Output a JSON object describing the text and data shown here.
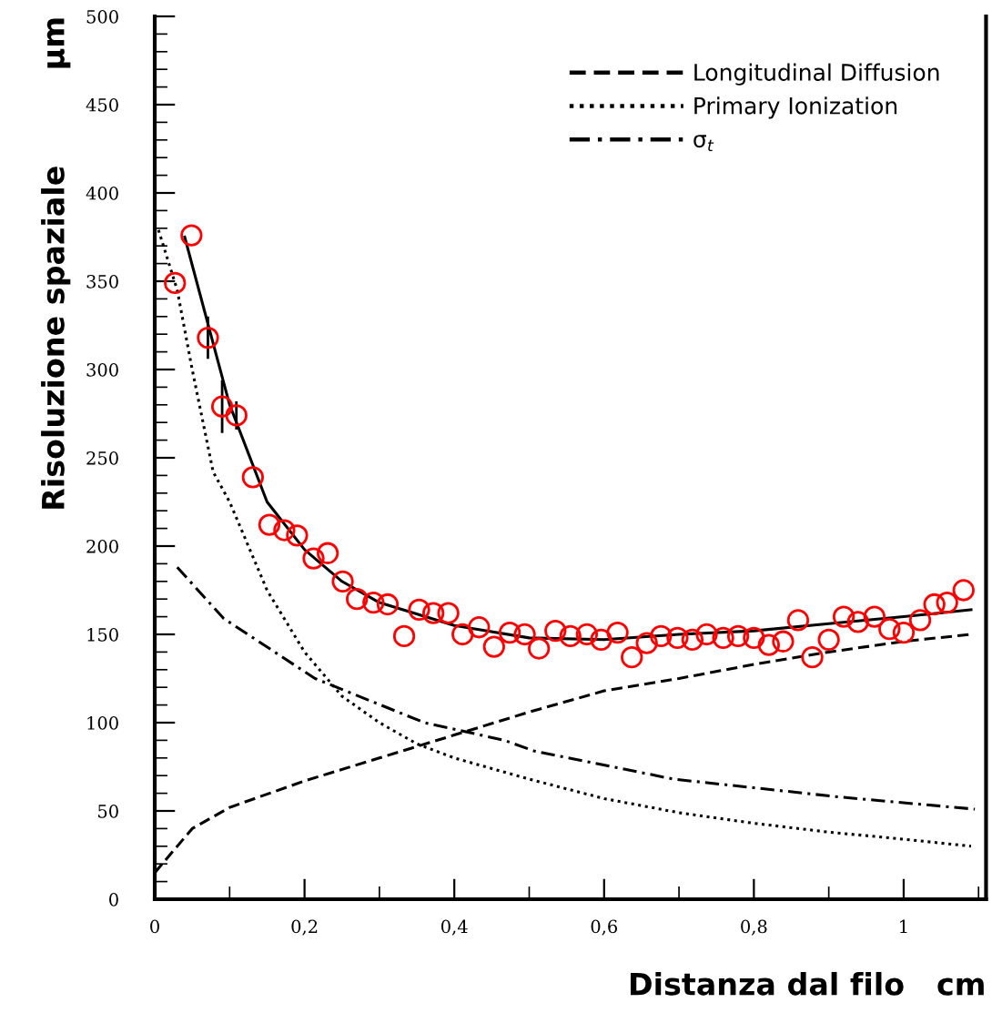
{
  "chart_data": {
    "type": "line",
    "xlabel": "Distanza dal filo   cm",
    "ylabel": "Risoluzione spaziale         µm",
    "xlim": [
      0,
      1.11
    ],
    "ylim": [
      0,
      500
    ],
    "xticks": [
      0,
      {
        "value": 0.2,
        "label": "0,2"
      },
      {
        "value": 0.4,
        "label": "0,4"
      },
      {
        "value": 0.6,
        "label": "0,6"
      },
      {
        "value": 0.8,
        "label": "0,8"
      },
      1
    ],
    "yticks": [
      0,
      50,
      100,
      150,
      200,
      250,
      300,
      350,
      400,
      450,
      500
    ],
    "grid": false,
    "legend": "top right",
    "series": [
      {
        "type": "scatter",
        "color": "#ff0000",
        "marker": "circle",
        "x": [
          0.027,
          0.049,
          0.071,
          0.09,
          0.109,
          0.131,
          0.153,
          0.173,
          0.19,
          0.212,
          0.231,
          0.251,
          0.27,
          0.292,
          0.311,
          0.333,
          0.353,
          0.372,
          0.392,
          0.411,
          0.433,
          0.453,
          0.474,
          0.494,
          0.513,
          0.535,
          0.555,
          0.577,
          0.596,
          0.618,
          0.637,
          0.657,
          0.676,
          0.698,
          0.718,
          0.737,
          0.759,
          0.779,
          0.8,
          0.82,
          0.839,
          0.859,
          0.878,
          0.9,
          0.92,
          0.939,
          0.961,
          0.981,
          1.0,
          1.022,
          1.041,
          1.058,
          1.08
        ],
        "values": [
          349,
          376,
          318,
          279,
          274,
          239,
          212,
          209,
          206,
          193,
          196,
          180,
          170,
          168,
          167,
          149,
          164,
          162,
          162,
          150,
          154,
          143,
          151,
          150,
          142,
          152,
          149,
          150,
          147,
          151,
          137,
          145,
          149,
          148,
          147,
          150,
          148,
          149,
          148,
          144,
          146,
          158,
          137,
          147,
          160,
          157,
          160,
          153,
          151,
          158,
          167,
          168,
          175
        ],
        "errors": [
          null,
          null,
          12,
          15,
          8,
          null,
          null,
          null,
          null,
          null,
          null,
          null,
          null,
          null,
          null,
          null,
          null,
          null,
          null,
          null,
          null,
          null,
          null,
          null,
          null,
          null,
          null,
          null,
          null,
          null,
          null,
          null,
          null,
          null,
          null,
          null,
          null,
          null,
          null,
          null,
          null,
          null,
          null,
          null,
          null,
          null,
          null,
          null,
          null,
          null,
          null,
          null,
          null
        ]
      },
      {
        "color": "#000000",
        "line_style": "solid",
        "x": [
          0.04,
          0.1,
          0.15,
          0.2,
          0.25,
          0.3,
          0.4,
          0.5,
          0.6,
          0.7,
          0.8,
          0.9,
          1.0,
          1.09
        ],
        "values": [
          375,
          280,
          225,
          198,
          180,
          168,
          155,
          148,
          147,
          150,
          152,
          156,
          160,
          164
        ]
      },
      {
        "name": "Longitudinal Diffusion",
        "color": "#000000",
        "line_style": "dashed",
        "x": [
          0.0,
          0.05,
          0.1,
          0.2,
          0.3,
          0.4,
          0.5,
          0.6,
          0.7,
          0.8,
          0.9,
          1.0,
          1.09
        ],
        "values": [
          15,
          40,
          52,
          67,
          80,
          93,
          106,
          118,
          125,
          133,
          140,
          146,
          150
        ]
      },
      {
        "name": "Primary Ionization",
        "color": "#000000",
        "line_style": "dotted",
        "x": [
          0.005,
          0.03,
          0.05,
          0.078,
          0.1,
          0.15,
          0.2,
          0.25,
          0.3,
          0.35,
          0.4,
          0.5,
          0.6,
          0.7,
          0.8,
          0.9,
          1.0,
          1.09
        ],
        "values": [
          379,
          345,
          300,
          242,
          225,
          175,
          140,
          115,
          100,
          88,
          80,
          68,
          57,
          49,
          43,
          38,
          34,
          30
        ]
      },
      {
        "name": "σ$_{t}$",
        "color": "#000000",
        "line_style": "dashdot",
        "x": [
          0.03,
          0.092,
          0.214,
          0.36,
          0.467,
          0.506,
          0.693,
          0.912,
          1.095
        ],
        "values": [
          188,
          159,
          125,
          100,
          90,
          84,
          68,
          58,
          51
        ]
      }
    ]
  }
}
